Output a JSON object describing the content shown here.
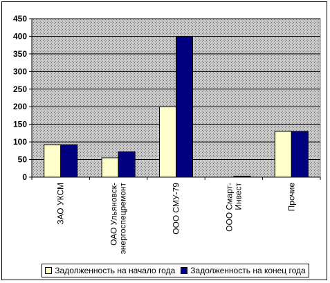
{
  "chart_data": {
    "type": "bar",
    "title": "",
    "xlabel": "",
    "ylabel": "",
    "ylim": [
      0,
      450
    ],
    "yticks": [
      0,
      50,
      100,
      150,
      200,
      250,
      300,
      350,
      400,
      450
    ],
    "grid": true,
    "legend_position": "bottom",
    "categories": [
      [
        "ЗАО УКСМ"
      ],
      [
        "ОАО Ульяновск-",
        "энергоспецремонт"
      ],
      [
        "ООО СМУ-79"
      ],
      [
        "ООО Смарт-",
        "Инвест"
      ],
      [
        "Прочие"
      ]
    ],
    "series": [
      {
        "name": "Задолженность на начало года",
        "values": [
          92,
          55,
          200,
          0,
          130
        ],
        "color": "#ffffcc"
      },
      {
        "name": "Задолженность на конец года",
        "values": [
          92,
          72,
          400,
          3,
          130
        ],
        "color": "#000080"
      }
    ],
    "plot_background": "#c0c0c0"
  }
}
